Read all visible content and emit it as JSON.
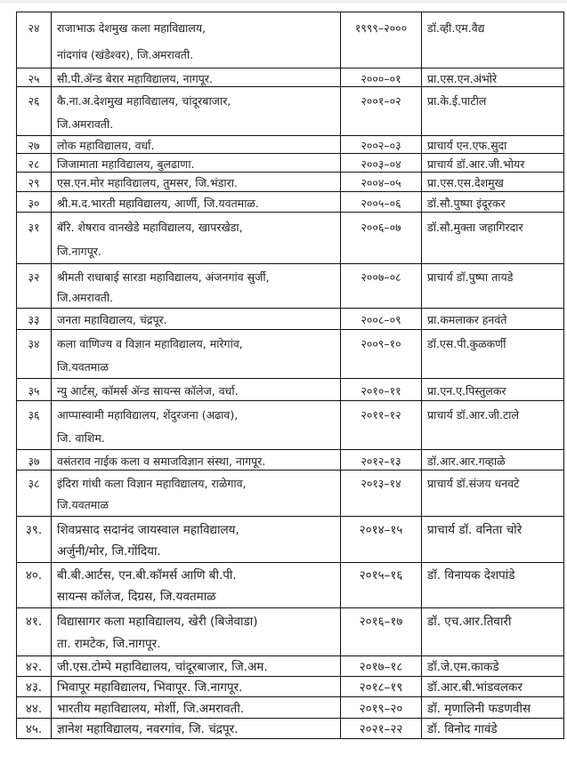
{
  "rows": [
    {
      "no": "२४",
      "name": [
        "राजाभाऊ देशमुख कला महाविद्यालय,",
        "नांदगांव (खंडेश्वर), जि.अमरावती."
      ],
      "year": "१९९९–२०००",
      "person": "डॉ.व्ही.एम.वैद्य"
    },
    {
      "no": "२५",
      "name": [
        "सी.पी.ॲन्ड बेरार महाविद्यालय, नागपूर."
      ],
      "year": "२०००–०१",
      "person": "प्रा.एस.एन.अंभोरे"
    },
    {
      "no": "२६",
      "name": [
        "कै.ना.अ.देशमुख महाविद्यालय, चांदूरबाजार,",
        "जि.अमरावती."
      ],
      "year": "२००१–०२",
      "person": "प्रा.के.ई.पाटील"
    },
    {
      "no": "२७",
      "name": [
        "लोक महाविद्यालय, वर्धा."
      ],
      "year": "२००२–०३",
      "person": "प्राचार्य एन.एफ.सुदा"
    },
    {
      "no": "२८",
      "name": [
        "जिजामाता महाविद्यालय, बुलढाणा."
      ],
      "year": "२००३–०४",
      "person": "प्राचार्य डॉ.आर.जी.भोयर"
    },
    {
      "no": "२९",
      "name": [
        "एस.एन.मोर महाविद्यालय, तुमसर, जि.भंडारा."
      ],
      "year": "२००४–०५",
      "person": "प्रा.एस.एस.देशमुख"
    },
    {
      "no": "३०",
      "name": [
        "श्री.म.द.भारती महाविद्यालय, आर्णी, जि.यवतमाळ."
      ],
      "year": "२००५–०६",
      "person": "डॉ.सौ.पुष्पा इंदूरकर"
    },
    {
      "no": "३१",
      "name": [
        "बॅरि. शेषराव वानखेडे महाविद्यालय, खापरखेडा,",
        "जि.नागपूर."
      ],
      "year": "२००६–०७",
      "person": "डॉ.सौ.मुक्ता जहागिरदार"
    },
    {
      "no": "३२",
      "name": [
        "श्रीमती राधाबाई सारडा महाविद्यालय, अंजनगांव सुर्जी,",
        "जि.अमरावती."
      ],
      "year": "२००७–०८",
      "person": "प्राचार्य डॉ.पुष्पा तायडे"
    },
    {
      "no": "३३",
      "name": [
        "जनता महाविद्यालय, चंद्रपूर."
      ],
      "year": "२००८–०९",
      "person": "प्रा.कमलाकर हनवंते"
    },
    {
      "no": "३४",
      "name": [
        "कला वाणिज्य व विज्ञान महाविद्यालय, मारेगांव,",
        "जि.यवतमाळ"
      ],
      "year": "२००९–१०",
      "person": "डॉ.एस.पी.कुळकर्णी"
    },
    {
      "no": "३५",
      "name": [
        "न्यु आर्टस्, कॉमर्स ॲन्ड सायन्स कॉलेज, वर्धा."
      ],
      "year": "२०१०–११",
      "person": "प्रा.एन.ए.पिस्तुलकर"
    },
    {
      "no": "३६",
      "name": [
        "आप्पास्वामी महाविद्यालय, शेंदुरजना (अढाव),",
        "जि. वाशिम."
      ],
      "year": "२०११–१२",
      "person": "प्राचार्य डॉ.आर.जी.टाले"
    },
    {
      "no": "३७",
      "name": [
        "वसंतराव नाईक कला व समाजविज्ञान संस्था, नागपूर."
      ],
      "year": "२०१२–१३",
      "person": "डॉ.आर.आर.गव्हाळे"
    },
    {
      "no": "३८",
      "name": [
        "इंदिरा गांधी कला विज्ञान महाविद्यालय, राळेगाव,",
        "जि.यवतमाळ"
      ],
      "year": "२०१३–१४",
      "person": "प्राचार्य डॉ.संजय धनवटे"
    },
    {
      "no": "३९.",
      "name": [
        "शिवप्रसाद सदानंद जायस्वाल महाविद्यालय,",
        "अर्जुनी/मोर, जि.गोंदिया."
      ],
      "year": "२०१४–१५",
      "person": "प्राचार्य डॉ. वनिता चोरे"
    },
    {
      "no": "४०.",
      "name": [
        "बी.बी.आर्टस, एन.बी.कॉमर्स आणि बी.पी.",
        "सायन्स कॉलेज, दिग्रस, जि.यवतमाळ"
      ],
      "year": "२०१५–१६",
      "person": "डॉ. विनायक देशपांडे"
    },
    {
      "no": "४१.",
      "name": [
        "विद्यासागर कला महाविद्यालय, खेरी (बिजेवाडा)",
        "ता. रामटेक, जि.नागपूर."
      ],
      "year": "२०१६–१७",
      "person": "डॉ. एच.आर.तिवारी"
    },
    {
      "no": "४२.",
      "name": [
        "जी.एस.टोम्पे महाविद्यालय, चांदूरबाजार, जि.अम."
      ],
      "year": "२०१७–१८",
      "person": "डॉ.जे.एम.काकडे"
    },
    {
      "no": "४३.",
      "name": [
        "भिवापूर महाविद्यालय, भिवापूर. जि.नागपूर."
      ],
      "year": "२०१८–१९",
      "person": "डॉ.आर.बी.भांडवलकर"
    },
    {
      "no": "४४.",
      "name": [
        "भारतीय महाविद्यालय, मोर्शी, जि.अमरावती."
      ],
      "year": "२०१९–२०",
      "person": "डॉ. मृणालिनी फडणवीस"
    },
    {
      "no": "४५.",
      "name": [
        "ज्ञानेश महाविद्यालय, नवरगांव, जि. चंद्रपूर."
      ],
      "year": "२०२१–२२",
      "person": "डॉ. विनोद गावंडे"
    }
  ]
}
